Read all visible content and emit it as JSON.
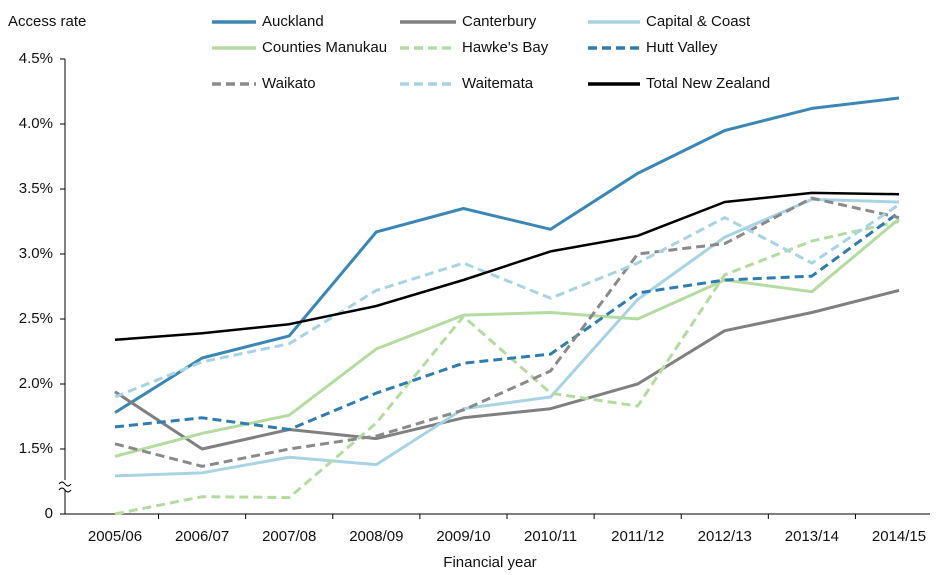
{
  "chart_data": {
    "type": "line",
    "y_label": "Access rate",
    "x_label": "Financial year",
    "categories": [
      "2005/06",
      "2006/07",
      "2007/08",
      "2008/09",
      "2009/10",
      "2010/11",
      "2011/12",
      "2012/13",
      "2013/14",
      "2014/15"
    ],
    "ylim": [
      0,
      4.5
    ],
    "yticks": [
      0,
      {
        "value": 1.5,
        "label": "1.5%"
      },
      {
        "value": 2.0,
        "label": "2.0%"
      },
      {
        "value": 2.5,
        "label": "2.5%"
      },
      {
        "value": 3.0,
        "label": "3.0%"
      },
      {
        "value": 3.5,
        "label": "3.5%"
      },
      {
        "value": 4.0,
        "label": "4.0%"
      },
      {
        "value": 4.5,
        "label": "4.5%"
      }
    ],
    "axis_break": true,
    "series": [
      {
        "name": "Auckland",
        "color": "#3a87b5",
        "dash": false,
        "values": [
          1.78,
          2.2,
          2.37,
          3.17,
          3.35,
          3.19,
          3.62,
          3.95,
          4.12,
          4.2
        ]
      },
      {
        "name": "Canterbury",
        "color": "#808080",
        "dash": false,
        "values": [
          1.94,
          1.5,
          1.65,
          1.58,
          1.74,
          1.81,
          2.0,
          2.41,
          2.55,
          2.72
        ]
      },
      {
        "name": "Capital & Coast",
        "color": "#a8d3e4",
        "dash": false,
        "values": [
          0.88,
          0.95,
          1.31,
          1.14,
          1.81,
          1.9,
          2.65,
          3.13,
          3.42,
          3.4
        ]
      },
      {
        "name": "Counties Manukau",
        "color": "#b3dca0",
        "dash": false,
        "values": [
          1.33,
          1.62,
          1.76,
          2.27,
          2.53,
          2.55,
          2.5,
          2.8,
          2.71,
          3.27
        ]
      },
      {
        "name": "Hawke's Bay",
        "color": "#b3dca0",
        "dash": true,
        "values": [
          0,
          0.4,
          0.38,
          1.7,
          2.52,
          1.93,
          1.83,
          2.84,
          3.1,
          3.25
        ]
      },
      {
        "name": "Hutt Valley",
        "color": "#2e7cb0",
        "dash": true,
        "values": [
          1.67,
          1.74,
          1.65,
          1.93,
          2.16,
          2.23,
          2.7,
          2.8,
          2.83,
          3.32
        ]
      },
      {
        "name": "Waikato",
        "color": "#8a8a8a",
        "dash": true,
        "values": [
          1.54,
          1.1,
          1.5,
          1.6,
          1.8,
          2.1,
          3.0,
          3.08,
          3.43,
          3.28
        ]
      },
      {
        "name": "Waitemata",
        "color": "#a8d3e4",
        "dash": true,
        "values": [
          1.9,
          2.17,
          2.31,
          2.72,
          2.93,
          2.66,
          2.93,
          3.28,
          2.93,
          3.38
        ]
      },
      {
        "name": "Total New Zealand",
        "color": "#000000",
        "dash": false,
        "values": [
          2.34,
          2.39,
          2.46,
          2.6,
          2.8,
          3.02,
          3.14,
          3.4,
          3.47,
          3.46
        ]
      }
    ]
  }
}
